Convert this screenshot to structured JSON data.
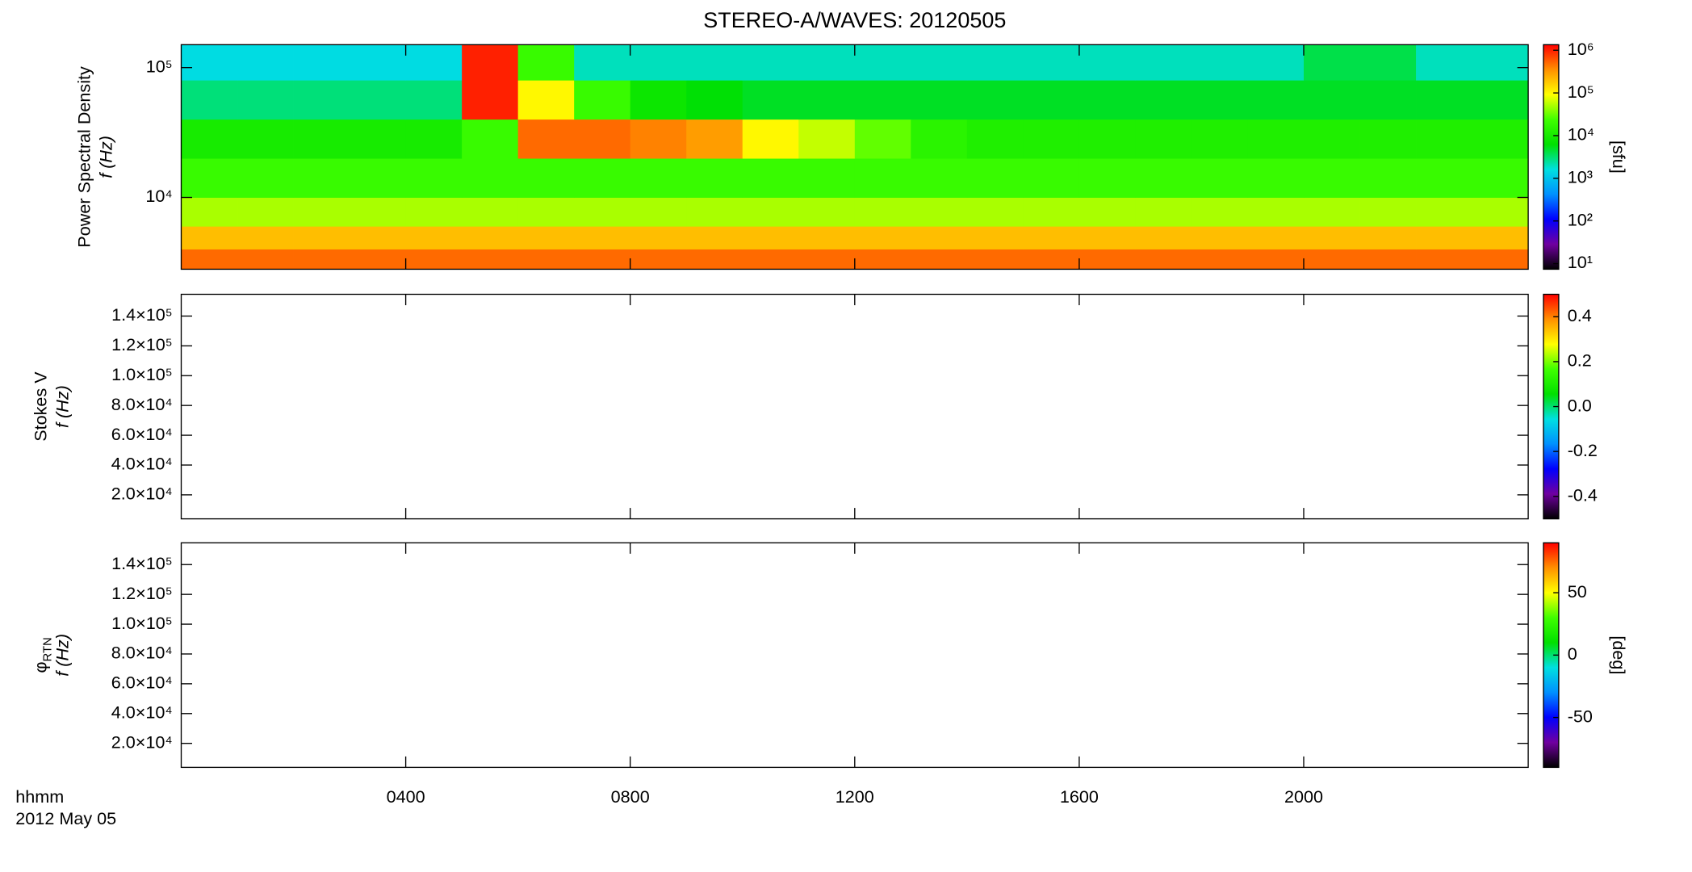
{
  "chart_data": [
    {
      "type": "heatmap",
      "title": "STEREO-A/WAVES: 20120505",
      "y_label": "Power Spectral Density",
      "y_sublabel": "f (Hz)",
      "colorbar_label": "[sfu]",
      "log_y": true,
      "log_color": true,
      "ylim": [
        2800,
        150000
      ],
      "yticks": [
        {
          "value": 10000,
          "label": "10⁴"
        },
        {
          "value": 100000,
          "label": "10⁵"
        }
      ],
      "clim": [
        7.4,
        1350000
      ],
      "cticks": [
        {
          "value": 10,
          "label": "10¹"
        },
        {
          "value": 100,
          "label": "10²"
        },
        {
          "value": 1000,
          "label": "10³"
        },
        {
          "value": 10000,
          "label": "10⁴"
        },
        {
          "value": 100000,
          "label": "10⁵"
        },
        {
          "value": 1000000,
          "label": "10⁶"
        }
      ],
      "colormap": [
        "#000000",
        "#7000a0",
        "#0000ff",
        "#0090ff",
        "#00e0e0",
        "#00e000",
        "#40ff00",
        "#ffff00",
        "#ff9000",
        "#ff0000"
      ],
      "time_edges": [
        0,
        1,
        2,
        3,
        4,
        5,
        6,
        7,
        8,
        9,
        10,
        11,
        12,
        13,
        14,
        15,
        16,
        17,
        18,
        19,
        20,
        21,
        22,
        23,
        24
      ],
      "freq_edges": [
        2800,
        4000,
        6000,
        10000,
        20000,
        40000,
        80000,
        150000
      ],
      "z": [
        [
          500000,
          500000,
          500000,
          500000,
          500000,
          500000,
          500000,
          500000,
          500000,
          500000,
          500000,
          500000,
          500000,
          500000,
          500000,
          500000,
          500000,
          500000,
          500000,
          500000,
          500000,
          500000,
          500000,
          500000
        ],
        [
          200000,
          200000,
          200000,
          200000,
          200000,
          200000,
          200000,
          200000,
          200000,
          200000,
          200000,
          200000,
          200000,
          200000,
          200000,
          200000,
          200000,
          200000,
          200000,
          200000,
          200000,
          200000,
          200000,
          200000
        ],
        [
          50000,
          50000,
          50000,
          50000,
          50000,
          50000,
          50000,
          50000,
          50000,
          50000,
          50000,
          50000,
          50000,
          50000,
          50000,
          50000,
          50000,
          50000,
          50000,
          50000,
          50000,
          50000,
          50000,
          50000
        ],
        [
          20000,
          20000,
          20000,
          20000,
          20000,
          20000,
          20000,
          20000,
          20000,
          20000,
          20000,
          20000,
          20000,
          20000,
          20000,
          20000,
          20000,
          20000,
          20000,
          20000,
          20000,
          20000,
          20000,
          20000
        ],
        [
          10000,
          10000,
          10000,
          10000,
          10000,
          20000,
          500000,
          500000,
          400000,
          300000,
          100000,
          60000,
          30000,
          15000,
          12000,
          12000,
          12000,
          12000,
          12000,
          12000,
          12000,
          12000,
          12000,
          12000
        ],
        [
          3000,
          3000,
          3000,
          3000,
          3000,
          1000000,
          100000,
          20000,
          8000,
          6000,
          5000,
          5000,
          5000,
          5000,
          5000,
          5000,
          5000,
          5000,
          5000,
          5000,
          5000,
          5000,
          5000,
          5000
        ],
        [
          1500,
          1500,
          1500,
          1500,
          1500,
          1000000,
          20000,
          2000,
          2000,
          2000,
          2000,
          2000,
          2000,
          2000,
          2000,
          2000,
          2000,
          2000,
          2000,
          2000,
          4000,
          4000,
          2000,
          2000
        ]
      ]
    },
    {
      "type": "heatmap",
      "y_label": "Stokes V",
      "y_sublabel": "f (Hz)",
      "ylim": [
        3900,
        154600
      ],
      "yticks": [
        {
          "value": 20000,
          "label": "2.0×10⁴"
        },
        {
          "value": 40000,
          "label": "4.0×10⁴"
        },
        {
          "value": 60000,
          "label": "6.0×10⁴"
        },
        {
          "value": 80000,
          "label": "8.0×10⁴"
        },
        {
          "value": 100000,
          "label": "1.0×10⁵"
        },
        {
          "value": 120000,
          "label": "1.2×10⁵"
        },
        {
          "value": 140000,
          "label": "1.4×10⁵"
        }
      ],
      "clim": [
        -0.5,
        0.5
      ],
      "cticks": [
        -0.4,
        -0.2,
        {
          "value": 0,
          "label": "0.0"
        },
        0.2,
        0.4
      ],
      "colormap": [
        "#000000",
        "#7000a0",
        "#0000ff",
        "#0090ff",
        "#00e0e0",
        "#00e000",
        "#40ff00",
        "#ffff00",
        "#ff9000",
        "#ff0000"
      ]
    },
    {
      "type": "heatmap",
      "y_label": "φ",
      "y_label_subscript": "RTN",
      "y_sublabel": "f (Hz)",
      "colorbar_label": "[deg]",
      "ylim": [
        3900,
        154600
      ],
      "yticks": [
        {
          "value": 20000,
          "label": "2.0×10⁴"
        },
        {
          "value": 40000,
          "label": "4.0×10⁴"
        },
        {
          "value": 60000,
          "label": "6.0×10⁴"
        },
        {
          "value": 80000,
          "label": "8.0×10⁴"
        },
        {
          "value": 100000,
          "label": "1.0×10⁵"
        },
        {
          "value": 120000,
          "label": "1.2×10⁵"
        },
        {
          "value": 140000,
          "label": "1.4×10⁵"
        }
      ],
      "clim": [
        -90,
        90
      ],
      "cticks": [
        -50,
        0,
        50
      ],
      "colormap": [
        "#000000",
        "#7000a0",
        "#0000ff",
        "#0090ff",
        "#00e0e0",
        "#00e000",
        "#40ff00",
        "#ffff00",
        "#ff9000",
        "#ff0000"
      ],
      "xlim": [
        0,
        24
      ],
      "xticks": [
        {
          "value": 4,
          "label": "0400"
        },
        {
          "value": 8,
          "label": "0800"
        },
        {
          "value": 12,
          "label": "1200"
        },
        {
          "value": 16,
          "label": "1600"
        },
        {
          "value": 20,
          "label": "2000"
        }
      ],
      "x_label": "hhmm",
      "date_label": "2012 May 05"
    }
  ]
}
